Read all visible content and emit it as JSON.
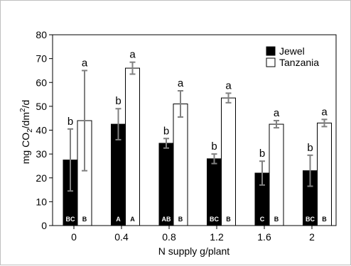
{
  "chart_data": {
    "type": "bar",
    "xlabel": "N supply g/plant",
    "ylabel": {
      "prefix": "mg CO",
      "sub": "2",
      "mid": "/dm",
      "sup": "2",
      "suffix": "/d"
    },
    "ylim": [
      0,
      80
    ],
    "yticks": [
      0,
      10,
      20,
      30,
      40,
      50,
      60,
      70,
      80
    ],
    "x_tick_labels": [
      "0",
      "0.4",
      "0.8",
      "1.2",
      "1.6",
      "2"
    ],
    "grid": false,
    "legend_position": "top-right",
    "series": [
      {
        "name": "Jewel",
        "color": "#000000",
        "values": [
          27.5,
          42.5,
          34.5,
          28,
          22,
          23
        ],
        "errors": [
          13,
          6.5,
          2,
          2,
          5,
          6.5
        ],
        "top_letters": [
          "b",
          "b",
          "b",
          "b",
          "b",
          "b"
        ],
        "bar_letters": [
          "BC",
          "A",
          "AB",
          "BC",
          "C",
          "BC"
        ]
      },
      {
        "name": "Tanzania",
        "color": "#ffffff",
        "values": [
          44,
          66,
          51,
          53.5,
          42.5,
          43
        ],
        "errors": [
          21,
          2.5,
          5.5,
          2,
          1.5,
          1.5
        ],
        "top_letters": [
          "a",
          "a",
          "a",
          "a",
          "a",
          "a"
        ],
        "bar_letters": [
          "B",
          "A",
          "B",
          "B",
          "B",
          "B"
        ]
      }
    ]
  }
}
